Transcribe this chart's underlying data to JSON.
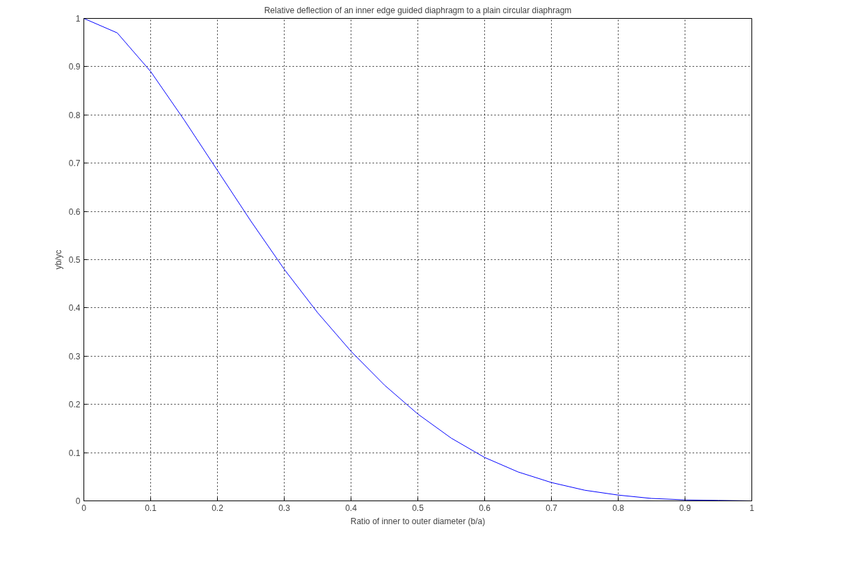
{
  "chart_data": {
    "type": "line",
    "title": "Relative deflection of an inner edge guided diaphragm to a plain circular diaphragm",
    "xlabel": "Ratio of inner to outer diameter (b/a)",
    "ylabel": "yb/yc",
    "x": [
      0,
      0.05,
      0.1,
      0.15,
      0.2,
      0.25,
      0.3,
      0.35,
      0.4,
      0.45,
      0.5,
      0.55,
      0.6,
      0.65,
      0.7,
      0.75,
      0.8,
      0.85,
      0.9,
      0.95,
      1
    ],
    "series": [
      {
        "color": "#0000ff",
        "values": [
          1,
          0.97,
          0.89,
          0.79,
          0.685,
          0.58,
          0.48,
          0.39,
          0.31,
          0.24,
          0.18,
          0.13,
          0.09,
          0.06,
          0.038,
          0.022,
          0.012,
          0.005,
          0.002,
          0.001,
          0
        ]
      }
    ],
    "xlim": [
      0,
      1
    ],
    "ylim": [
      0,
      1
    ],
    "xticks": [
      0,
      0.1,
      0.2,
      0.3,
      0.4,
      0.5,
      0.6,
      0.7,
      0.8,
      0.9,
      1
    ],
    "yticks": [
      0,
      0.1,
      0.2,
      0.3,
      0.4,
      0.5,
      0.6,
      0.7,
      0.8,
      0.9,
      1
    ],
    "grid": true,
    "line_style": "solid"
  }
}
